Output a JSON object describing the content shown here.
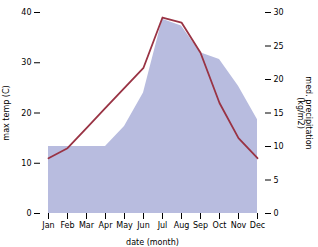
{
  "chart_data": {
    "type": "line",
    "categories": [
      "Jan",
      "Feb",
      "Mar",
      "Apr",
      "May",
      "Jun",
      "Jul",
      "Aug",
      "Sep",
      "Oct",
      "Nov",
      "Dec"
    ],
    "xlabel": "date (month)",
    "ylabel": "max temp (C)",
    "y2label": "med. precipitation\n(kg/m2)",
    "series": [
      {
        "type": "area",
        "axis": "y2",
        "color": "#b8bcdf",
        "values": [
          10,
          10,
          10,
          10,
          13,
          18,
          29,
          28,
          24,
          23,
          19,
          14
        ]
      },
      {
        "type": "line",
        "color": "#993344",
        "values": [
          11,
          13,
          17,
          21,
          25,
          29,
          39,
          38,
          32,
          22,
          15,
          11
        ]
      }
    ],
    "ylim": [
      0,
      40
    ],
    "yticks": [
      0,
      10,
      20,
      30,
      40
    ],
    "y2lim": [
      0,
      30
    ],
    "y2ticks": [
      0,
      5,
      10,
      15,
      20,
      25,
      30
    ]
  }
}
